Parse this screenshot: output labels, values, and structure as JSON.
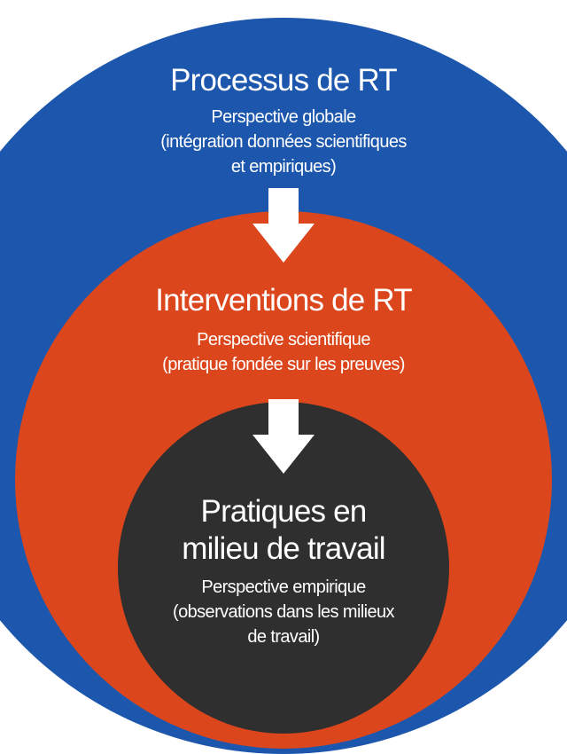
{
  "colors": {
    "outer": "#1d57ad",
    "middle": "#dc461c",
    "inner": "#2f2f2f",
    "arrow": "#ffffff",
    "text": "#ffffff"
  },
  "levels": [
    {
      "title": "Processus de RT",
      "subtitle": "Perspective globale\n(intégration données scientifiques\net  empiriques)"
    },
    {
      "title": "Interventions de RT",
      "subtitle": "Perspective scientifique\n(pratique fondée sur les preuves)"
    },
    {
      "title": "Pratiques en\nmilieu de travail",
      "subtitle": "Perspective empirique\n(observations dans les milieux\nde travail)"
    }
  ]
}
